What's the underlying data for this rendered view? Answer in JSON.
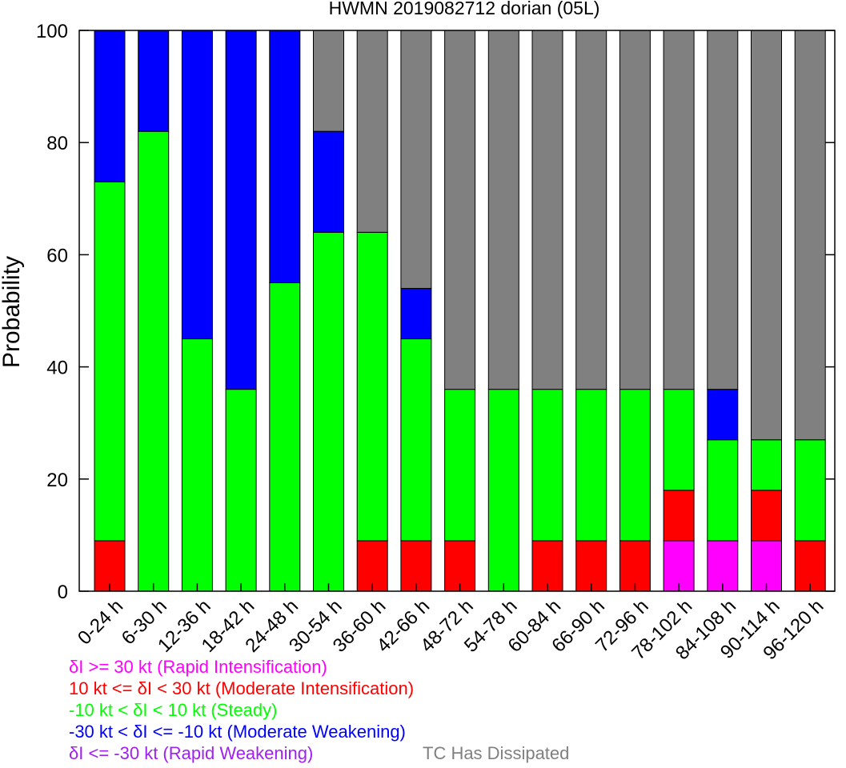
{
  "chart_data": {
    "type": "bar",
    "stacked": true,
    "title": "HWMN 2019082712 dorian (05L)",
    "ylabel": "Probability",
    "ylim": [
      0,
      100
    ],
    "yticks": [
      0,
      20,
      40,
      60,
      80,
      100
    ],
    "categories": [
      "0-24 h",
      "6-30 h",
      "12-36 h",
      "18-42 h",
      "24-48 h",
      "30-54 h",
      "36-60 h",
      "42-66 h",
      "48-72 h",
      "54-78 h",
      "60-84 h",
      "66-90 h",
      "72-96 h",
      "78-102 h",
      "84-108 h",
      "90-114 h",
      "96-120 h"
    ],
    "series": [
      {
        "name": "δI >= 30 kt (Rapid Intensification)",
        "color": "#ff00ff",
        "values": [
          0,
          0,
          0,
          0,
          0,
          0,
          0,
          0,
          0,
          0,
          0,
          0,
          0,
          9,
          9,
          9,
          0
        ]
      },
      {
        "name": "10 kt <= δI < 30 kt (Moderate Intensification)",
        "color": "#ff0000",
        "values": [
          9,
          0,
          0,
          0,
          0,
          0,
          9,
          9,
          9,
          0,
          9,
          9,
          9,
          9,
          0,
          9,
          9
        ]
      },
      {
        "name": "-10 kt < δI < 10 kt (Steady)",
        "color": "#00ff00",
        "values": [
          64,
          82,
          45,
          36,
          55,
          64,
          55,
          36,
          27,
          36,
          27,
          27,
          27,
          18,
          18,
          9,
          18
        ]
      },
      {
        "name": "-30 kt < δI <= -10 kt (Moderate Weakening)",
        "color": "#0000ff",
        "values": [
          27,
          18,
          55,
          64,
          45,
          18,
          0,
          9,
          0,
          0,
          0,
          0,
          0,
          0,
          9,
          0,
          0
        ]
      },
      {
        "name": "δI <= -30 kt (Rapid Weakening)",
        "color": "#a020f0",
        "values": [
          0,
          0,
          0,
          0,
          0,
          0,
          0,
          0,
          0,
          0,
          0,
          0,
          0,
          0,
          0,
          0,
          0
        ]
      },
      {
        "name": "TC Has Dissipated",
        "color": "#808080",
        "values": [
          0,
          0,
          0,
          0,
          0,
          18,
          36,
          46,
          64,
          64,
          64,
          64,
          64,
          64,
          64,
          73,
          73
        ]
      }
    ]
  },
  "legend": {
    "ri": "δI >= 30 kt (Rapid Intensification)",
    "mi": "10 kt <= δI < 30 kt (Moderate Intensification)",
    "steady": "-10 kt < δI < 10 kt (Steady)",
    "mw": "-30 kt < δI <= -10 kt (Moderate Weakening)",
    "rw": "δI <= -30 kt (Rapid Weakening)",
    "dissipated": "TC Has Dissipated"
  }
}
